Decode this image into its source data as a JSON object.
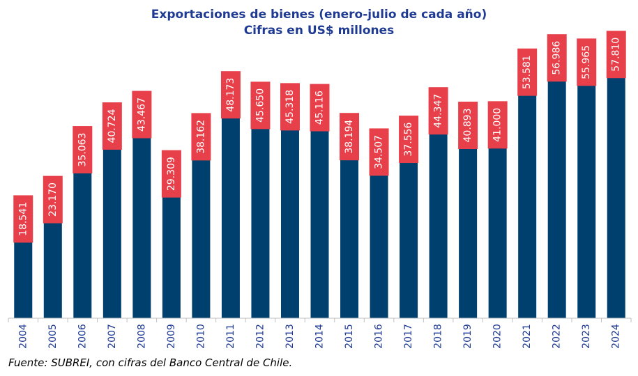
{
  "chart_data": {
    "type": "bar",
    "title": "Exportaciones de bienes (enero-julio de cada año)",
    "subtitle": "Cifras en US$ millones",
    "categories": [
      "2004",
      "2005",
      "2006",
      "2007",
      "2008",
      "2009",
      "2010",
      "2011",
      "2012",
      "2013",
      "2014",
      "2015",
      "2016",
      "2017",
      "2018",
      "2019",
      "2020",
      "2021",
      "2022",
      "2023",
      "2024"
    ],
    "values": [
      18541,
      23170,
      35063,
      40724,
      43467,
      29309,
      38162,
      48173,
      45650,
      45318,
      45116,
      38194,
      34507,
      37556,
      44347,
      40893,
      41000,
      53581,
      56986,
      55965,
      57810
    ],
    "value_labels": [
      "18.541",
      "23.170",
      "35.063",
      "40.724",
      "43.467",
      "29.309",
      "38.162",
      "48.173",
      "45.650",
      "45.318",
      "45.116",
      "38.194",
      "34.507",
      "37.556",
      "44.347",
      "40.893",
      "41.000",
      "53.581",
      "56.986",
      "55.965",
      "57.810"
    ],
    "xlabel": "",
    "ylabel": "",
    "ylim": [
      0,
      65000
    ],
    "grid": false,
    "legend": "none",
    "colors": {
      "bar": "#00406f",
      "label_bg": "#e8404a",
      "label_text": "#ffffff",
      "axis_text": "#1f3a93",
      "title": "#1f3a93"
    }
  },
  "source_note": "Fuente: SUBREI, con cifras del Banco Central de Chile."
}
